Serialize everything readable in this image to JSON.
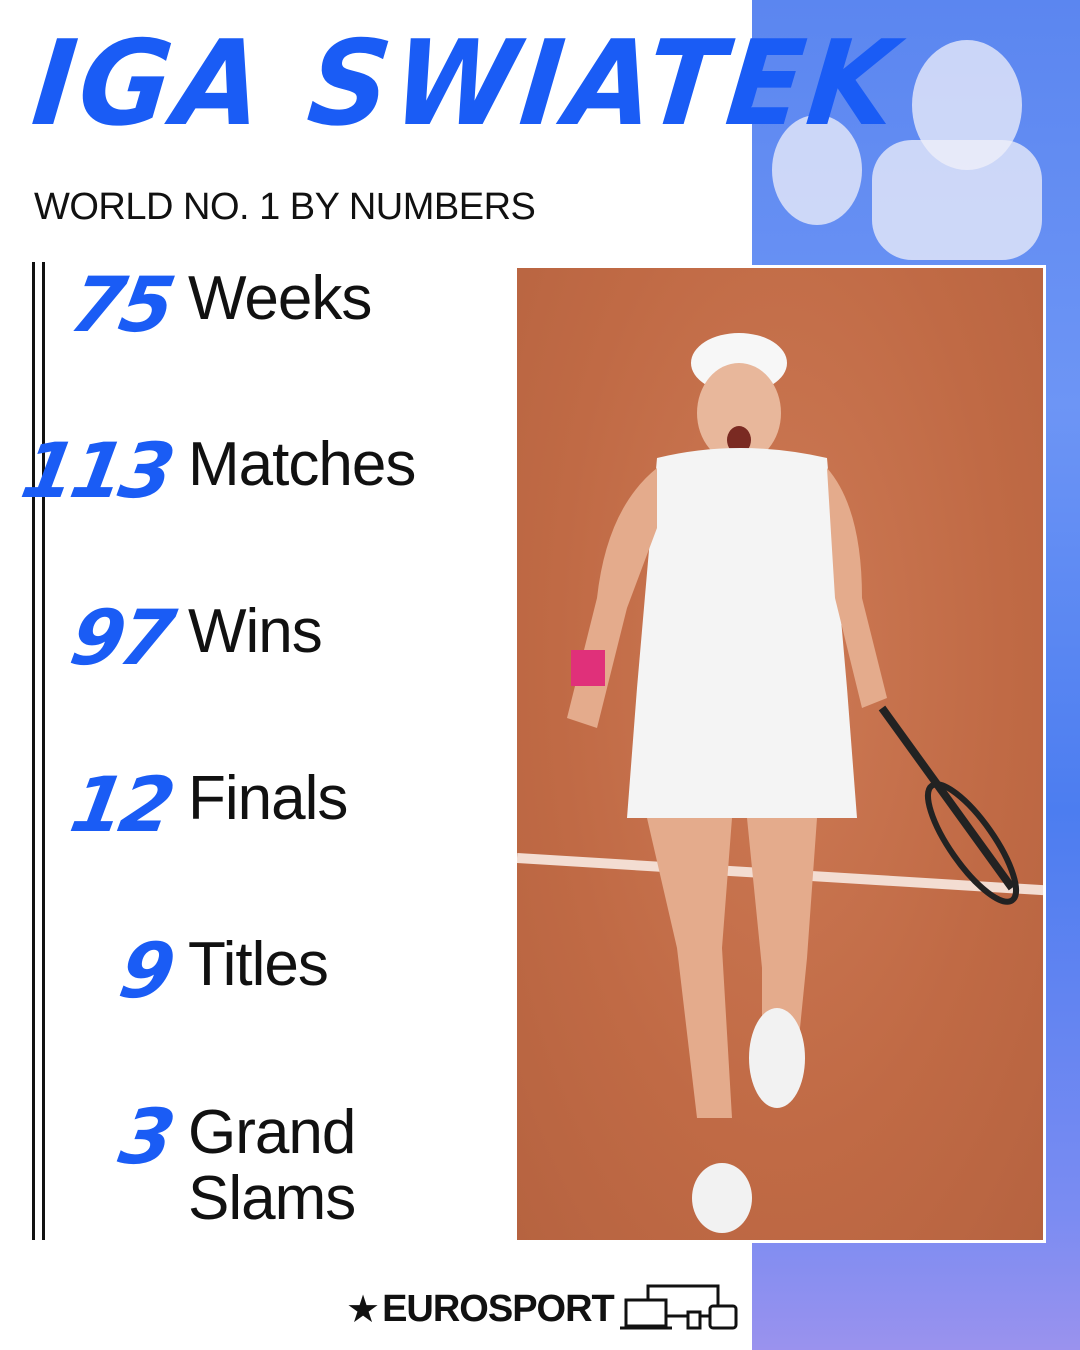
{
  "header": {
    "title": "IGA SWIATEK",
    "subtitle": "WORLD NO. 1 BY NUMBERS"
  },
  "stats": [
    {
      "value": "75",
      "label": "Weeks"
    },
    {
      "value": "113",
      "label": "Matches"
    },
    {
      "value": "97",
      "label": "Wins"
    },
    {
      "value": "12",
      "label": "Finals"
    },
    {
      "value": "9",
      "label": "Titles"
    },
    {
      "value": "3",
      "label": "Grand Slams"
    }
  ],
  "footer": {
    "brand": "EUROSPORT",
    "icon": "devices-icon"
  },
  "colors": {
    "accent": "#1a5cf5",
    "court": "#c06a45",
    "side_panel": "#5b86f0"
  }
}
